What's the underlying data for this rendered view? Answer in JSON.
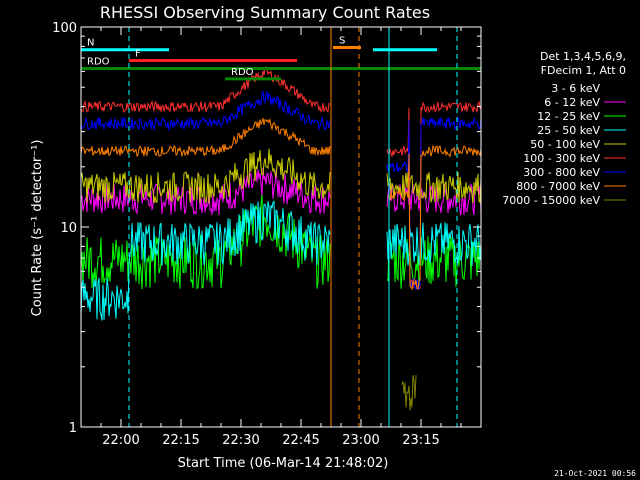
{
  "chart_data": {
    "type": "line",
    "title": "RHESSI Observing Summary Count Rates",
    "xlabel": "Start Time (06-Mar-14 21:48:02)",
    "ylabel": "Count Rate (s⁻¹ detector⁻¹)",
    "yscale": "log",
    "xlim": [
      -10,
      90
    ],
    "ylim": [
      1,
      100
    ],
    "x_ticks": [
      {
        "x": 0,
        "label": "22:00"
      },
      {
        "x": 15,
        "label": "22:15"
      },
      {
        "x": 30,
        "label": "22:30"
      },
      {
        "x": 45,
        "label": "22:45"
      },
      {
        "x": 60,
        "label": "23:00"
      },
      {
        "x": 75,
        "label": "23:15"
      }
    ],
    "y_ticks": [
      {
        "y": 1,
        "label": "1"
      },
      {
        "y": 10,
        "label": "10"
      },
      {
        "y": 100,
        "label": "100"
      }
    ],
    "legend": {
      "position": "right",
      "header": [
        "Det 1,3,4,5,6,9,",
        "FDecim 1, Att 0"
      ]
    },
    "series": [
      {
        "name": "3 - 6 keV",
        "color": "#000000"
      },
      {
        "name": "6 - 12 keV",
        "color": "#ff00ff"
      },
      {
        "name": "12 - 25 keV",
        "color": "#00ff00"
      },
      {
        "name": "25 - 50 keV",
        "color": "#00ffff"
      },
      {
        "name": "50 - 100 keV",
        "color": "#cccc00"
      },
      {
        "name": "100 - 300 keV",
        "color": "#ff3030"
      },
      {
        "name": "300 - 800 keV",
        "color": "#0000ff"
      },
      {
        "name": "800 - 7000 keV",
        "color": "#ff8000"
      },
      {
        "name": "7000 - 15000 keV",
        "color": "#808000"
      }
    ],
    "bands": [
      {
        "label": "N",
        "color": "#00ffff",
        "segments": [
          [
            -10,
            0.2
          ],
          [
            0.2,
            12
          ],
          [
            63,
            79
          ]
        ],
        "y": 77
      },
      {
        "label": "F",
        "color": "#ff2020",
        "segments": [
          [
            2,
            44
          ]
        ],
        "y": 68
      },
      {
        "label": "RDO",
        "color": "#008800",
        "segments": [
          [
            -10,
            76
          ],
          [
            74,
            80
          ],
          [
            80,
            90
          ]
        ],
        "y": 62
      },
      {
        "label": "RDO",
        "color": "#008800",
        "segments": [
          [
            26,
            40
          ]
        ],
        "y": 55
      },
      {
        "label": "S",
        "color": "#ff8000",
        "segments": [
          [
            53,
            60
          ]
        ],
        "y": 79
      }
    ],
    "vlines": [
      {
        "x": 2,
        "color": "#00ffff",
        "dashed": true
      },
      {
        "x": 52.5,
        "color": "#ff8000",
        "dashed": false
      },
      {
        "x": 59.5,
        "color": "#ff8000",
        "dashed": true
      },
      {
        "x": 67,
        "color": "#00ffff",
        "dashed": false
      },
      {
        "x": 84,
        "color": "#00ffff",
        "dashed": true
      }
    ]
  },
  "footer": {
    "timestamp": "21-Oct-2021 00:56"
  }
}
